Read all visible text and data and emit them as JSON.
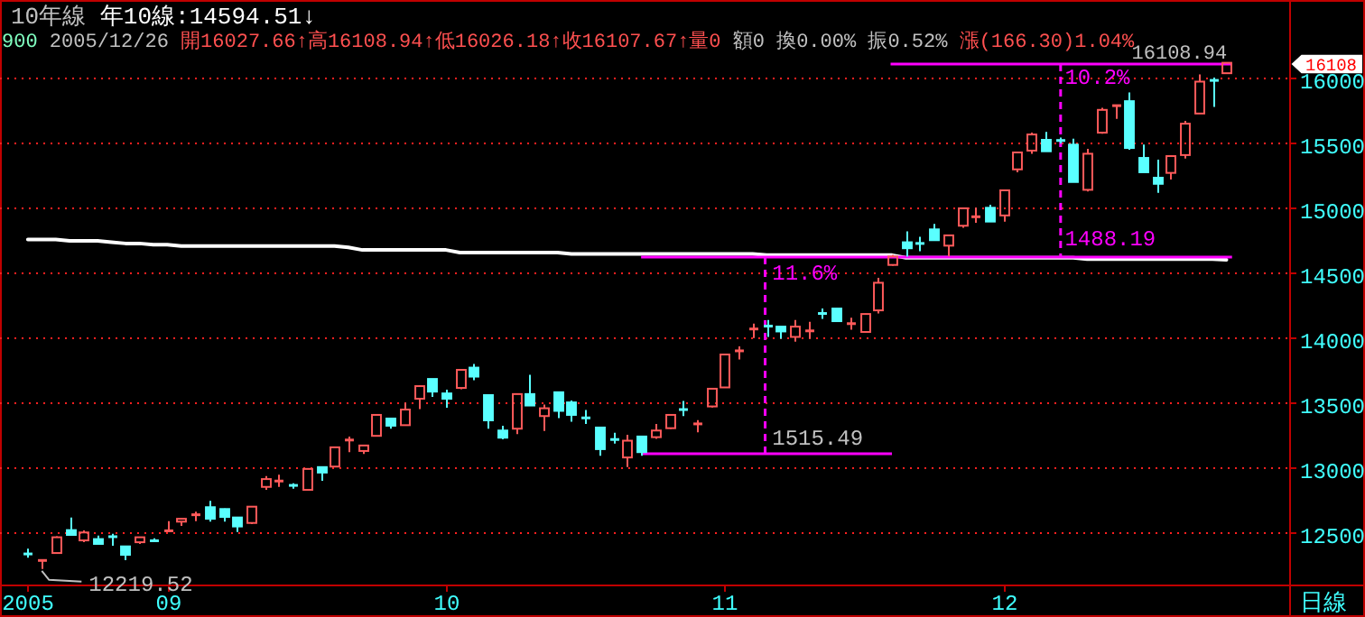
{
  "chart_data": {
    "type": "candlestick",
    "title": "10年線 年10線:14594.51↓",
    "subtitle": "900 2005/12/26 開16027.66↑高16108.94↑低16026.18↑收16107.67↑量0 額0 換0.00% 振0.52% 漲(166.30)1.04%",
    "ylabel": "日線",
    "categories": [
      "2005",
      null,
      null,
      null,
      null,
      null,
      null,
      null,
      null,
      null,
      "09",
      null,
      null,
      null,
      null,
      null,
      null,
      null,
      null,
      null,
      null,
      null,
      null,
      null,
      null,
      null,
      null,
      null,
      null,
      null,
      "10",
      null,
      null,
      null,
      null,
      null,
      null,
      null,
      null,
      null,
      null,
      null,
      null,
      null,
      null,
      null,
      null,
      null,
      null,
      null,
      "11",
      null,
      null,
      null,
      null,
      null,
      null,
      null,
      null,
      null,
      null,
      null,
      null,
      null,
      null,
      null,
      null,
      null,
      null,
      null,
      "12",
      null,
      null,
      null,
      null,
      null,
      null,
      null,
      null,
      null,
      null,
      null,
      null,
      null,
      null,
      null,
      null,
      null,
      null,
      null,
      null
    ],
    "ohlc": [
      [
        12340,
        12375,
        12306,
        12330
      ],
      [
        12280,
        12290,
        12219.52,
        12290
      ],
      [
        12342,
        12470,
        12335,
        12463
      ],
      [
        12518,
        12615,
        12481,
        12481
      ],
      [
        12439,
        12515,
        12425,
        12500
      ],
      [
        12449,
        12476,
        12412,
        12412
      ],
      [
        12470,
        12490,
        12398,
        12465
      ],
      [
        12393,
        12395,
        12287,
        12328
      ],
      [
        12425,
        12465,
        12411,
        12463
      ],
      [
        12440,
        12455,
        12425,
        12432
      ],
      [
        12510,
        12587,
        12510,
        12515
      ],
      [
        12583,
        12607,
        12550,
        12605
      ],
      [
        12632,
        12660,
        12587,
        12640
      ],
      [
        12694,
        12743,
        12583,
        12605
      ],
      [
        12680,
        12683,
        12583,
        12619
      ],
      [
        12615,
        12615,
        12504,
        12546
      ],
      [
        12573,
        12700,
        12565,
        12698
      ],
      [
        12850,
        12933,
        12827,
        12910
      ],
      [
        12890,
        12943,
        12850,
        12900
      ],
      [
        12865,
        12877,
        12836,
        12858
      ],
      [
        12827,
        12990,
        12820,
        12988
      ],
      [
        13002,
        13002,
        12896,
        12960
      ],
      [
        13006,
        13160,
        13000,
        13154
      ],
      [
        13205,
        13237,
        13117,
        13215
      ],
      [
        13126,
        13170,
        13103,
        13168
      ],
      [
        13242,
        13405,
        13240,
        13403
      ],
      [
        13375,
        13375,
        13297,
        13320
      ],
      [
        13324,
        13496,
        13320,
        13444
      ],
      [
        13527,
        13630,
        13448,
        13624
      ],
      [
        13679,
        13679,
        13541,
        13582
      ],
      [
        13568,
        13596,
        13458,
        13527
      ],
      [
        13610,
        13752,
        13600,
        13749
      ],
      [
        13766,
        13794,
        13669,
        13697
      ],
      [
        13555,
        13555,
        13297,
        13361
      ],
      [
        13283,
        13320,
        13215,
        13228
      ],
      [
        13297,
        13565,
        13255,
        13563
      ],
      [
        13563,
        13711,
        13475,
        13475
      ],
      [
        13394,
        13482,
        13279,
        13454
      ],
      [
        13577,
        13577,
        13379,
        13434
      ],
      [
        13499,
        13513,
        13351,
        13403
      ],
      [
        13385,
        13440,
        13334,
        13375
      ],
      [
        13306,
        13306,
        13089,
        13140
      ],
      [
        13218,
        13265,
        13182,
        13210
      ],
      [
        13076,
        13251,
        13002,
        13205
      ],
      [
        13237,
        13237,
        13089,
        13117
      ],
      [
        13232,
        13334,
        13219,
        13283
      ],
      [
        13301,
        13410,
        13295,
        13403
      ],
      [
        13448,
        13510,
        13394,
        13440
      ],
      [
        13330,
        13362,
        13269,
        13338
      ],
      [
        13468,
        13610,
        13460,
        13604
      ],
      [
        13614,
        13870,
        13610,
        13867
      ],
      [
        13890,
        13929,
        13828,
        13900
      ],
      [
        14058,
        14104,
        13993,
        14068
      ],
      [
        14090,
        14132,
        14002,
        14080
      ],
      [
        14081,
        14081,
        13989,
        14044
      ],
      [
        14002,
        14132,
        13966,
        14081
      ],
      [
        14045,
        14118,
        13989,
        14052
      ],
      [
        14186,
        14220,
        14141,
        14178
      ],
      [
        14220,
        14222,
        14118,
        14123
      ],
      [
        14100,
        14150,
        14058,
        14108
      ],
      [
        14040,
        14180,
        14035,
        14178
      ],
      [
        14206,
        14455,
        14182,
        14418
      ],
      [
        14555,
        14633,
        14550,
        14620
      ],
      [
        14729,
        14812,
        14619,
        14683
      ],
      [
        14724,
        14771,
        14660,
        14716
      ],
      [
        14828,
        14870,
        14745,
        14745
      ],
      [
        14703,
        14785,
        14620,
        14782
      ],
      [
        14856,
        14993,
        14840,
        14990
      ],
      [
        14920,
        14994,
        14879,
        14930
      ],
      [
        14994,
        15017,
        14888,
        14888
      ],
      [
        14935,
        15130,
        14888,
        15128
      ],
      [
        15289,
        15420,
        15267,
        15419
      ],
      [
        15433,
        15571,
        15409,
        15557
      ],
      [
        15516,
        15576,
        15428,
        15428
      ],
      [
        15514,
        15534,
        15488,
        15508
      ],
      [
        15479,
        15525,
        15192,
        15192
      ],
      [
        15132,
        15446,
        15119,
        15409
      ],
      [
        15571,
        15762,
        15562,
        15746
      ],
      [
        15775,
        15782,
        15677,
        15782
      ],
      [
        15813,
        15880,
        15439,
        15453
      ],
      [
        15377,
        15479,
        15267,
        15267
      ],
      [
        15225,
        15363,
        15109,
        15178
      ],
      [
        15262,
        15395,
        15211,
        15391
      ],
      [
        15399,
        15662,
        15372,
        15640
      ],
      [
        15718,
        16018,
        15718,
        15963
      ],
      [
        15975,
        15994,
        15769,
        15970
      ],
      [
        16027.66,
        16108.94,
        16026.18,
        16107.67
      ],
      null,
      null,
      null,
      null
    ],
    "colors": [
      "#5affff",
      "#ff5a5a",
      "#ff5a5a",
      "#5affff",
      "#ff5a5a",
      "#5affff",
      "#5affff",
      "#5affff",
      "#ff5a5a",
      "#5affff",
      "#ff5a5a",
      "#ff5a5a",
      "#ff5a5a",
      "#5affff",
      "#5affff",
      "#5affff",
      "#ff5a5a",
      "#ff5a5a",
      "#ff5a5a",
      "#5affff",
      "#ff5a5a",
      "#5affff",
      "#ff5a5a",
      "#ff5a5a",
      "#ff5a5a",
      "#ff5a5a",
      "#5affff",
      "#ff5a5a",
      "#ff5a5a",
      "#5affff",
      "#5affff",
      "#ff5a5a",
      "#5affff",
      "#5affff",
      "#5affff",
      "#ff5a5a",
      "#5affff",
      "#ff5a5a",
      "#5affff",
      "#5affff",
      "#5affff",
      "#5affff",
      "#5affff",
      "#ff5a5a",
      "#5affff",
      "#ff5a5a",
      "#ff5a5a",
      "#5affff",
      "#ff5a5a",
      "#ff5a5a",
      "#ff5a5a",
      "#ff5a5a",
      "#ff5a5a",
      "#5affff",
      "#5affff",
      "#ff5a5a",
      "#ff5a5a",
      "#5affff",
      "#5affff",
      "#ff5a5a",
      "#ff5a5a",
      "#ff5a5a",
      "#ff5a5a",
      "#5affff",
      "#5affff",
      "#5affff",
      "#ff5a5a",
      "#ff5a5a",
      "#ff5a5a",
      "#5affff",
      "#ff5a5a",
      "#ff5a5a",
      "#ff5a5a",
      "#5affff",
      "#5affff",
      "#5affff",
      "#ff5a5a",
      "#ff5a5a",
      "#ff5a5a",
      "#5affff",
      "#5affff",
      "#5affff",
      "#ff5a5a",
      "#ff5a5a",
      "#ff5a5a",
      "#5affff",
      "#ff5a5a",
      null,
      null,
      null,
      null
    ],
    "series": [
      {
        "type": "line",
        "color": "#ffffff",
        "values": [
          14750,
          14750,
          14750,
          14740,
          14740,
          14740,
          14730,
          14720,
          14720,
          14710,
          14710,
          14700,
          14700,
          14700,
          14700,
          14700,
          14700,
          14700,
          14700,
          14700,
          14700,
          14700,
          14700,
          14690,
          14670,
          14670,
          14670,
          14670,
          14670,
          14670,
          14670,
          14650,
          14650,
          14650,
          14650,
          14650,
          14650,
          14650,
          14650,
          14640,
          14640,
          14640,
          14640,
          14640,
          14640,
          14640,
          14640,
          14640,
          14640,
          14640,
          14640,
          14640,
          14640,
          14630,
          14630,
          14630,
          14630,
          14630,
          14630,
          14630,
          14630,
          14630,
          14630,
          14610,
          14610,
          14610,
          14610,
          14610,
          14610,
          14610,
          14610,
          14610,
          14610,
          14610,
          14610,
          14610,
          14600,
          14600,
          14600,
          14600,
          14600,
          14600,
          14600,
          14600,
          14600,
          14600,
          14594.51,
          null,
          null,
          null,
          null
        ]
      }
    ],
    "ylim": [
      12100,
      16590
    ],
    "yticks": [
      12500,
      13000,
      13500,
      14000,
      14500,
      15000,
      15500,
      16000
    ],
    "grid": "y",
    "ref_lines": [
      {
        "axis": "y",
        "value": 13105.26,
        "color": "#ff00ff"
      },
      {
        "axis": "y",
        "value": 14620.75,
        "color": "#ff00ff"
      },
      {
        "axis": "y",
        "value": 16108.94,
        "label": "16108.94",
        "color": "#ff00ff"
      }
    ],
    "annotations": [
      {
        "text": "11.6%",
        "y": 14620.75
      },
      {
        "text": "1515.49",
        "y": 13105.26
      },
      {
        "text": "10.2%",
        "y": 16108.94
      },
      {
        "text": "1488.19",
        "y": 14620.75
      },
      "12219.52",
      "16108"
    ]
  }
}
